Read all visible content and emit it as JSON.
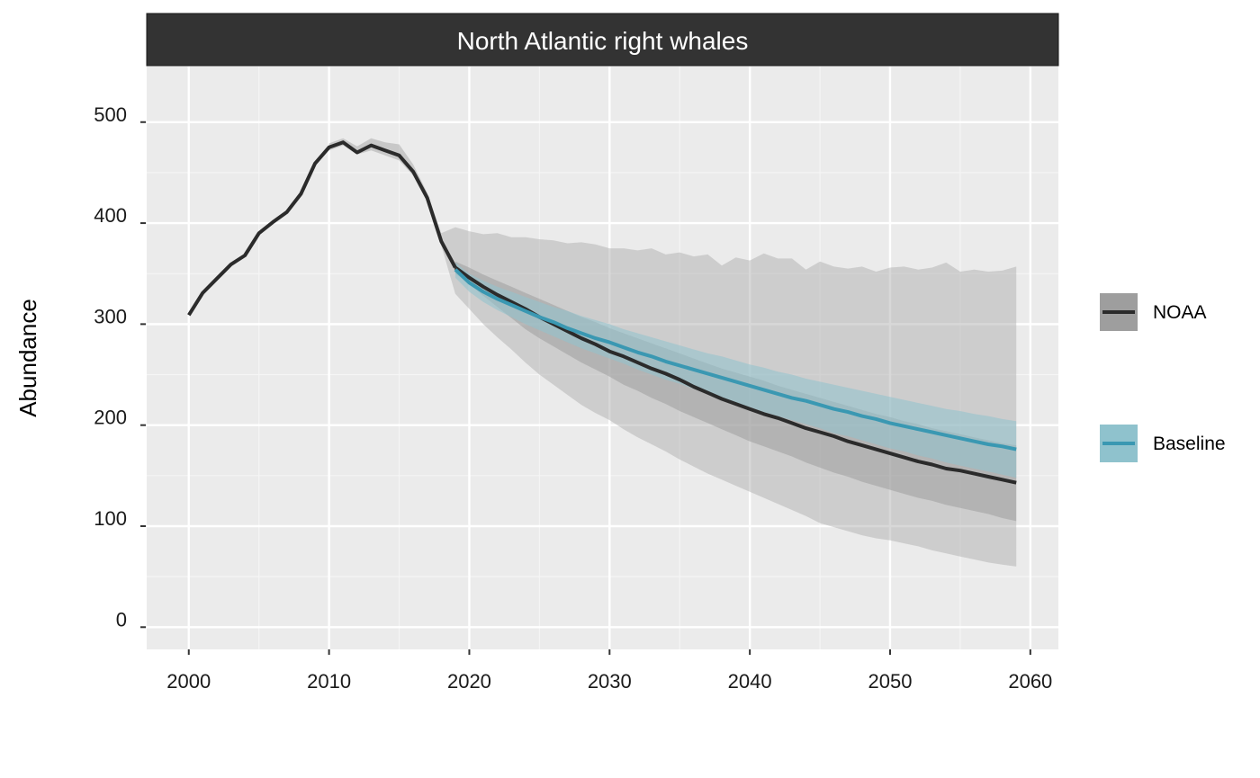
{
  "chart_data": {
    "type": "line",
    "title": "North Atlantic right whales",
    "xlabel": "",
    "ylabel": "Abundance",
    "xlim": [
      1997,
      2062
    ],
    "ylim": [
      -22,
      555
    ],
    "x_ticks": [
      2000,
      2010,
      2020,
      2030,
      2040,
      2050,
      2060
    ],
    "y_ticks": [
      0,
      100,
      200,
      300,
      400,
      500
    ],
    "grid": true,
    "legend_position": "right",
    "observed": {
      "x": [
        2000,
        2001,
        2002,
        2003,
        2004,
        2005,
        2006,
        2007,
        2008,
        2009,
        2010,
        2011,
        2012,
        2013,
        2014,
        2015,
        2016,
        2017,
        2018,
        2019
      ],
      "values": [
        309,
        331,
        345,
        359,
        368,
        390,
        401,
        411,
        429,
        459,
        475,
        480,
        470,
        477,
        472,
        467,
        451,
        425,
        382,
        356
      ]
    },
    "historical_band": {
      "x": [
        2010,
        2011,
        2012,
        2013,
        2014,
        2015,
        2016,
        2017,
        2018
      ],
      "lower": [
        472,
        477,
        468,
        472,
        467,
        462,
        447,
        421,
        378
      ],
      "upper": [
        479,
        484,
        476,
        484,
        480,
        478,
        458,
        430,
        390
      ]
    },
    "outer_band": {
      "x": [
        2018,
        2019,
        2020,
        2021,
        2022,
        2023,
        2024,
        2025,
        2026,
        2027,
        2028,
        2029,
        2030,
        2031,
        2032,
        2033,
        2034,
        2035,
        2036,
        2037,
        2038,
        2039,
        2040,
        2041,
        2042,
        2043,
        2044,
        2045,
        2046,
        2047,
        2048,
        2049,
        2050,
        2051,
        2052,
        2053,
        2054,
        2055,
        2056,
        2057,
        2058,
        2059
      ],
      "lower": [
        378,
        330,
        315,
        300,
        287,
        275,
        262,
        250,
        240,
        230,
        220,
        212,
        205,
        196,
        188,
        181,
        174,
        166,
        159,
        152,
        146,
        140,
        134,
        128,
        122,
        116,
        110,
        103,
        99,
        95,
        91,
        88,
        86,
        83,
        80,
        76,
        73,
        70,
        67,
        64,
        62,
        60
      ],
      "upper": [
        390,
        396,
        392,
        389,
        390,
        386,
        386,
        384,
        383,
        380,
        381,
        379,
        375,
        375,
        373,
        375,
        369,
        371,
        367,
        369,
        358,
        366,
        363,
        370,
        365,
        365,
        354,
        362,
        357,
        355,
        357,
        352,
        356,
        357,
        354,
        356,
        361,
        352,
        354,
        352,
        353,
        357
      ]
    },
    "series": [
      {
        "name": "NOAA",
        "color": "#2b2b2b",
        "band_color": "#9e9e9e",
        "x": [
          2019,
          2020,
          2021,
          2022,
          2023,
          2024,
          2025,
          2026,
          2027,
          2028,
          2029,
          2030,
          2031,
          2032,
          2033,
          2034,
          2035,
          2036,
          2037,
          2038,
          2039,
          2040,
          2041,
          2042,
          2043,
          2044,
          2045,
          2046,
          2047,
          2048,
          2049,
          2050,
          2051,
          2052,
          2053,
          2054,
          2055,
          2056,
          2057,
          2058,
          2059
        ],
        "values": [
          356,
          346,
          337,
          329,
          322,
          315,
          307,
          300,
          293,
          286,
          280,
          273,
          268,
          262,
          256,
          251,
          245,
          238,
          232,
          226,
          221,
          216,
          211,
          207,
          202,
          197,
          193,
          189,
          184,
          180,
          176,
          172,
          168,
          164,
          161,
          157,
          155,
          152,
          149,
          146,
          143
        ],
        "lower": [
          350,
          340,
          328,
          317,
          306,
          295,
          286,
          278,
          270,
          262,
          255,
          248,
          240,
          234,
          227,
          221,
          214,
          208,
          202,
          196,
          190,
          184,
          179,
          174,
          169,
          163,
          158,
          153,
          149,
          144,
          140,
          136,
          132,
          128,
          125,
          121,
          118,
          115,
          112,
          108,
          105
        ],
        "upper": [
          362,
          356,
          349,
          343,
          337,
          331,
          325,
          319,
          313,
          307,
          302,
          296,
          291,
          286,
          281,
          276,
          271,
          266,
          261,
          256,
          252,
          248,
          244,
          239,
          235,
          231,
          227,
          223,
          219,
          215,
          211,
          208,
          204,
          201,
          197,
          194,
          191,
          188,
          185,
          182,
          180
        ]
      },
      {
        "name": "Baseline",
        "color": "#3a98b2",
        "band_color": "#8fc2cd",
        "x": [
          2019,
          2020,
          2021,
          2022,
          2023,
          2024,
          2025,
          2026,
          2027,
          2028,
          2029,
          2030,
          2031,
          2032,
          2033,
          2034,
          2035,
          2036,
          2037,
          2038,
          2039,
          2040,
          2041,
          2042,
          2043,
          2044,
          2045,
          2046,
          2047,
          2048,
          2049,
          2050,
          2051,
          2052,
          2053,
          2054,
          2055,
          2056,
          2057,
          2058,
          2059
        ],
        "values": [
          354,
          341,
          332,
          325,
          319,
          313,
          307,
          302,
          296,
          291,
          286,
          282,
          277,
          272,
          268,
          263,
          259,
          255,
          251,
          247,
          243,
          239,
          235,
          231,
          227,
          224,
          220,
          216,
          213,
          209,
          206,
          202,
          199,
          196,
          193,
          190,
          187,
          184,
          181,
          179,
          176
        ],
        "lower": [
          346,
          332,
          322,
          314,
          307,
          300,
          294,
          288,
          282,
          276,
          271,
          266,
          261,
          255,
          250,
          245,
          241,
          236,
          231,
          227,
          222,
          218,
          213,
          209,
          205,
          201,
          197,
          192,
          189,
          185,
          181,
          177,
          174,
          170,
          167,
          163,
          160,
          157,
          154,
          151,
          148
        ],
        "upper": [
          361,
          350,
          343,
          337,
          332,
          327,
          322,
          317,
          313,
          308,
          304,
          300,
          295,
          291,
          287,
          283,
          279,
          275,
          271,
          268,
          264,
          260,
          257,
          253,
          250,
          246,
          243,
          240,
          237,
          234,
          231,
          228,
          225,
          222,
          219,
          216,
          214,
          211,
          209,
          206,
          204
        ]
      }
    ]
  }
}
